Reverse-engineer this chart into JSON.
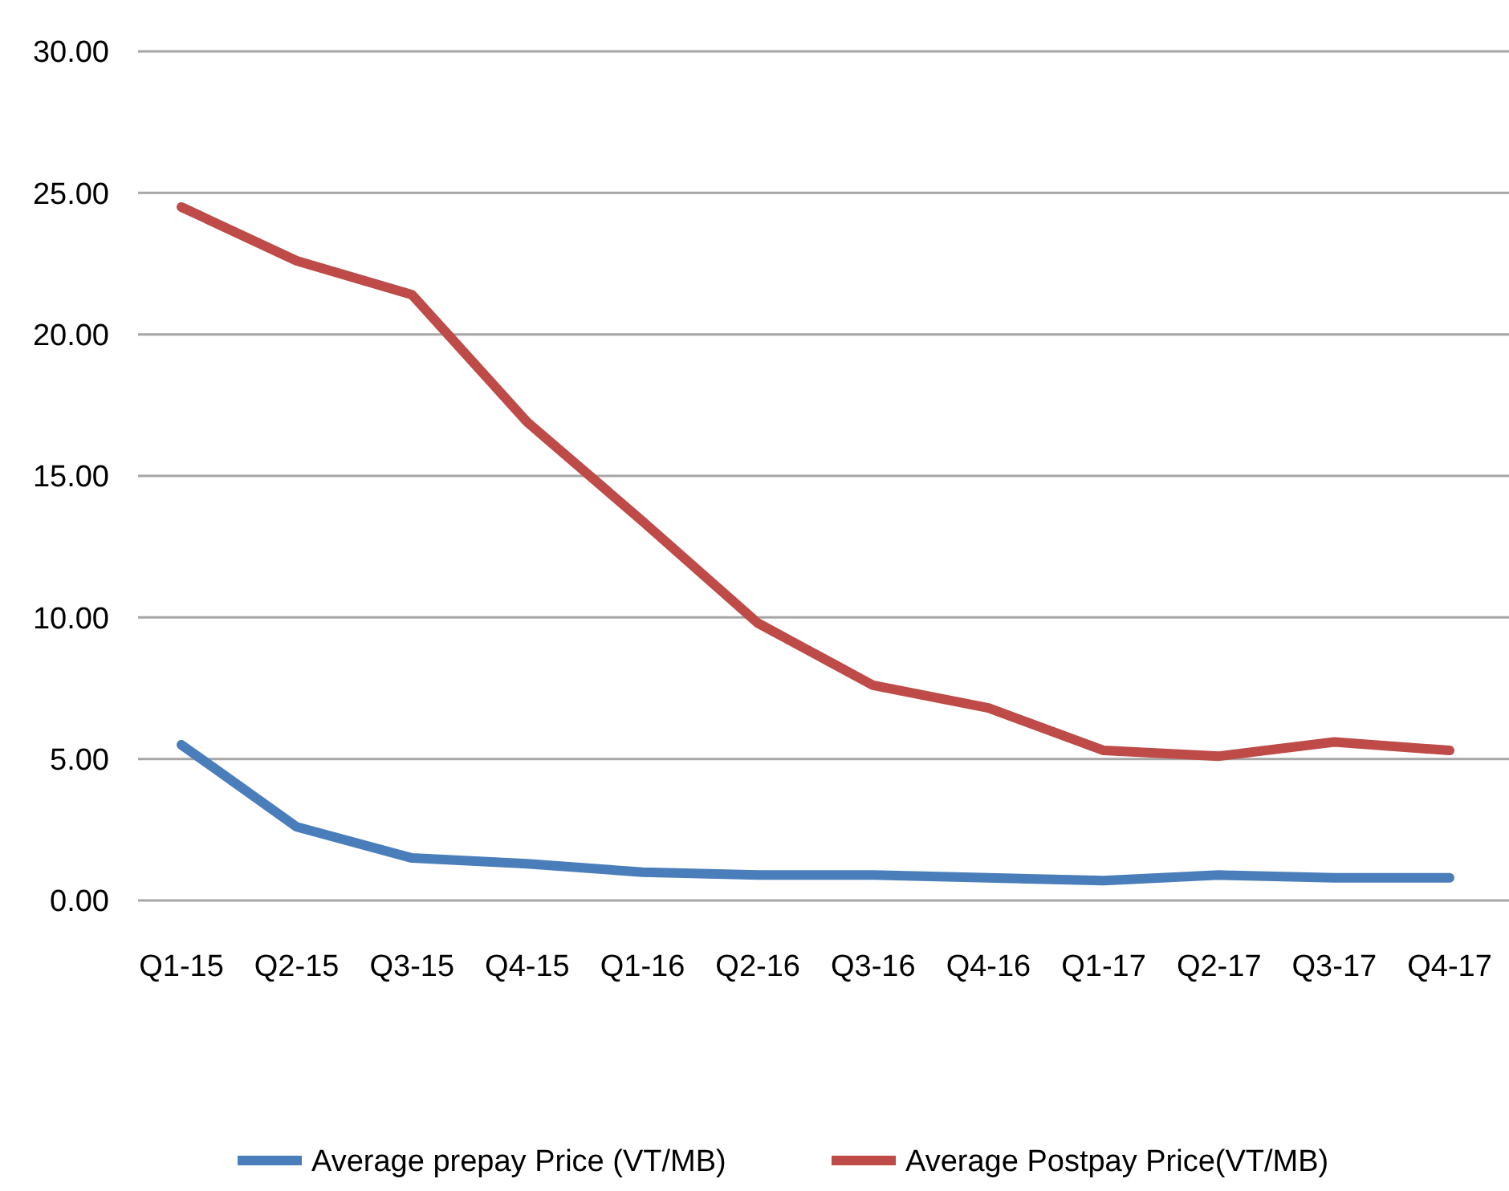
{
  "chart_data": {
    "type": "line",
    "categories": [
      "Q1-15",
      "Q2-15",
      "Q3-15",
      "Q4-15",
      "Q1-16",
      "Q2-16",
      "Q3-16",
      "Q4-16",
      "Q1-17",
      "Q2-17",
      "Q3-17",
      "Q4-17"
    ],
    "series": [
      {
        "name": "Average prepay Price (VT/MB)",
        "color": "#4a7ebb",
        "values": [
          5.5,
          2.6,
          1.5,
          1.3,
          1.0,
          0.9,
          0.9,
          0.8,
          0.7,
          0.9,
          0.8,
          0.8
        ]
      },
      {
        "name": "Average Postpay Price(VT/MB)",
        "color": "#be4b48",
        "values": [
          24.5,
          22.6,
          21.4,
          16.9,
          13.4,
          9.8,
          7.6,
          6.8,
          5.3,
          5.1,
          5.6,
          5.3
        ]
      }
    ],
    "ylim": [
      0,
      30
    ],
    "yticks": [
      {
        "value": 0,
        "label": "0.00"
      },
      {
        "value": 5,
        "label": "5.00"
      },
      {
        "value": 10,
        "label": "10.00"
      },
      {
        "value": 15,
        "label": "15.00"
      },
      {
        "value": 20,
        "label": "20.00"
      },
      {
        "value": 25,
        "label": "25.00"
      },
      {
        "value": 30,
        "label": "30.00"
      }
    ],
    "grid": "y",
    "legend": "bottom",
    "marker": "none",
    "line_style": "solid"
  }
}
